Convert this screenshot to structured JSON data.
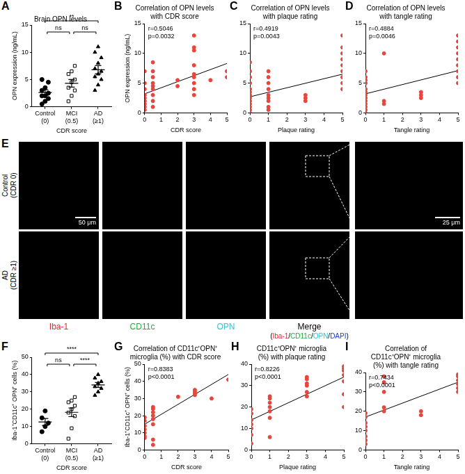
{
  "chart_data": [
    {
      "panel": "A",
      "type": "dot_plot",
      "title": "Brain OPN levels",
      "x_label": "CDR score",
      "y_label": "OPN expression (ng/mL)",
      "categories": [
        [
          "Control",
          "(0)"
        ],
        [
          "MCI",
          "(0.5)"
        ],
        [
          "AD",
          "(≥1)"
        ]
      ],
      "groups": [
        {
          "values": [
            0.5,
            1,
            1.5,
            2,
            2,
            2.5,
            3,
            3.5,
            4.5,
            5
          ],
          "mean": 2.6,
          "sem": 0.5,
          "marker": "circle"
        },
        {
          "values": [
            1,
            2,
            3,
            3.5,
            4.5,
            5,
            6,
            6.5,
            7.5
          ],
          "mean": 4.3,
          "sem": 0.7,
          "marker": "square_open"
        },
        {
          "values": [
            3,
            4,
            5,
            5.5,
            6,
            6.5,
            7,
            8,
            9,
            10,
            11
          ],
          "mean": 6.8,
          "sem": 0.75,
          "marker": "triangle"
        }
      ],
      "comparisons": [
        {
          "from": 0,
          "to": 1,
          "label": "ns"
        },
        {
          "from": 1,
          "to": 2,
          "label": "ns"
        },
        {
          "from": 0,
          "to": 2,
          "label": "**"
        }
      ],
      "color": "#000000",
      "ylim": [
        0,
        15
      ],
      "yticks": [
        0,
        5,
        10,
        15
      ],
      "grid": false
    },
    {
      "panel": "B",
      "type": "scatter",
      "title": [
        "Correlation of OPN levels",
        "with CDR score"
      ],
      "x_label": "CDR score",
      "y_label": "OPN expression (ng/mL)",
      "x": [
        0,
        0,
        0,
        0,
        0,
        0,
        0,
        0,
        0,
        0.5,
        0.5,
        0.5,
        0.5,
        0.5,
        0.5,
        0.5,
        0.5,
        0.5,
        2,
        2,
        3,
        3,
        3,
        3,
        3,
        3,
        3,
        3,
        3,
        4,
        5,
        5
      ],
      "values": [
        0.5,
        1,
        1.5,
        2,
        2.5,
        3,
        4,
        5,
        7,
        1,
        2,
        3,
        4,
        4.5,
        5,
        6,
        7,
        8.5,
        4.5,
        5.5,
        3,
        4,
        5,
        6,
        6.5,
        8,
        10.5,
        11,
        13,
        5.5,
        6,
        7
      ],
      "fit": {
        "x": [
          0,
          5
        ],
        "y": [
          3.2,
          8.3
        ]
      },
      "annotations": [
        "r=0.5046",
        "p=0.0032"
      ],
      "color": "#e8453c",
      "marker": "circle",
      "xlim": [
        0,
        5
      ],
      "xticks": [
        0,
        1,
        2,
        3,
        4,
        5
      ],
      "ylim": [
        0,
        15
      ],
      "yticks": [
        0,
        5,
        10,
        15
      ],
      "grid": false
    },
    {
      "panel": "C",
      "type": "scatter",
      "title": [
        "Correlation of OPN levels",
        "with plaque rating"
      ],
      "x_label": "Plaque rating",
      "x": [
        0,
        0,
        0,
        0,
        0,
        0,
        0,
        0,
        0,
        0,
        0,
        0,
        0,
        1,
        1,
        1,
        1,
        1,
        1,
        1,
        1,
        1,
        3,
        3,
        3,
        5,
        5,
        5,
        5,
        5,
        5,
        5,
        5,
        5
      ],
      "values": [
        0,
        0.5,
        1,
        1.5,
        2,
        2.5,
        3,
        3.5,
        4,
        5,
        6,
        7,
        8.5,
        0.5,
        1,
        2,
        2.5,
        3,
        4,
        5,
        6,
        7,
        2,
        2.5,
        3,
        4,
        5,
        6,
        7,
        8,
        9,
        10,
        11,
        13
      ],
      "fit": {
        "x": [
          0,
          5
        ],
        "y": [
          2.7,
          6.5
        ]
      },
      "annotations": [
        "r=0.4919",
        "p=0.0043"
      ],
      "color": "#e8453c",
      "marker": "circle",
      "xlim": [
        0,
        5
      ],
      "xticks": [
        0,
        1,
        2,
        3,
        4,
        5
      ],
      "ylim": [
        0,
        15
      ],
      "yticks": [
        0,
        5,
        10,
        15
      ],
      "grid": false
    },
    {
      "panel": "D",
      "type": "scatter",
      "title": [
        "Correlation of OPN levels",
        "with tangle rating"
      ],
      "x_label": "Tangle rating",
      "x": [
        0,
        0,
        0,
        0,
        0,
        0,
        0,
        0,
        0,
        0,
        0,
        0,
        0,
        1,
        1,
        1,
        3,
        3,
        3,
        5,
        5,
        5,
        5,
        5,
        5,
        5,
        5,
        5
      ],
      "values": [
        0,
        0.5,
        1,
        1.5,
        2,
        2.5,
        3,
        3.5,
        4,
        5,
        5.5,
        6,
        7,
        1.5,
        2,
        10,
        2.5,
        3,
        3.5,
        5,
        6,
        7,
        8,
        9,
        10,
        11,
        12,
        13
      ],
      "fit": {
        "x": [
          0,
          5
        ],
        "y": [
          3.2,
          7.1
        ]
      },
      "annotations": [
        "r=0.4884",
        "p=0.0046"
      ],
      "color": "#e8453c",
      "marker": "circle",
      "xlim": [
        0,
        5
      ],
      "xticks": [
        0,
        1,
        2,
        3,
        4,
        5
      ],
      "ylim": [
        0,
        15
      ],
      "yticks": [
        0,
        5,
        10,
        15
      ],
      "grid": false
    },
    {
      "panel": "F",
      "type": "dot_plot",
      "x_label": "CDR score",
      "y_label": "Iba-1⁺CD11c⁺ OPN⁺ cells (%)",
      "categories": [
        [
          "Control",
          "(0)"
        ],
        [
          "MCI",
          "(0.5)"
        ],
        [
          "AD",
          "(≥1)"
        ]
      ],
      "groups": [
        {
          "values": [
            7,
            10,
            12,
            15,
            19
          ],
          "mean": 12.6,
          "sem": 2,
          "marker": "circle"
        },
        {
          "values": [
            3,
            9,
            16,
            18,
            20,
            22,
            24,
            25,
            27
          ],
          "mean": 18.2,
          "sem": 2.5,
          "marker": "square_open"
        },
        {
          "values": [
            28,
            30,
            32,
            33,
            35,
            36,
            38,
            40
          ],
          "mean": 34,
          "sem": 1.4,
          "marker": "triangle"
        }
      ],
      "comparisons": [
        {
          "from": 0,
          "to": 1,
          "label": "ns"
        },
        {
          "from": 1,
          "to": 2,
          "label": "****"
        },
        {
          "from": 0,
          "to": 2,
          "label": "****"
        }
      ],
      "color": "#000000",
      "ylim": [
        0,
        50
      ],
      "yticks": [
        0,
        10,
        20,
        30,
        40,
        50
      ],
      "grid": false
    },
    {
      "panel": "G",
      "type": "scatter",
      "title": [
        "Correlation of CD11c⁺OPN⁺",
        "microglia (%) with CDR score"
      ],
      "x_label": "CDR score",
      "y_label": "Iba-1⁺CD11c⁺ OPN⁺ cells (%)",
      "x": [
        0,
        0,
        0,
        0,
        0,
        0,
        0,
        0.5,
        0.5,
        0.5,
        0.5,
        0.5,
        0.5,
        0.5,
        0.5,
        2,
        3,
        3,
        3,
        3,
        4,
        5
      ],
      "values": [
        7,
        8,
        10,
        12,
        14,
        17,
        19,
        3,
        6,
        15,
        18,
        20,
        22,
        24,
        25,
        31,
        32,
        33,
        34,
        35,
        30,
        41
      ],
      "fit": {
        "x": [
          0,
          5
        ],
        "y": [
          15,
          44
        ]
      },
      "annotations": [
        "r=0.8383",
        "p<0.0001"
      ],
      "color": "#e8453c",
      "marker": "circle",
      "xlim": [
        0,
        5
      ],
      "xticks": [
        0,
        1,
        2,
        3,
        4,
        5
      ],
      "ylim": [
        0,
        50
      ],
      "yticks": [
        0,
        10,
        20,
        30,
        40,
        50
      ],
      "grid": false
    },
    {
      "panel": "H",
      "type": "scatter",
      "title": [
        "CD11c⁺OPN⁺ microglia",
        "(%) with plaque rating"
      ],
      "x_label": "Plaque rating",
      "x": [
        0,
        0,
        0,
        0,
        0,
        0,
        0,
        1,
        1,
        1,
        1,
        1,
        1,
        1,
        3,
        3,
        3,
        3,
        3,
        3,
        5,
        5,
        5,
        5,
        5,
        5,
        5
      ],
      "values": [
        3,
        7,
        10,
        12,
        14,
        17,
        19,
        6,
        15,
        18,
        20,
        22,
        24,
        25,
        25,
        27,
        30,
        31,
        33,
        34,
        20,
        26,
        32,
        35,
        37,
        38,
        39
      ],
      "fit": {
        "x": [
          0,
          5
        ],
        "y": [
          14,
          34
        ]
      },
      "annotations": [
        "r=0.8226",
        "p<0.0001"
      ],
      "color": "#e8453c",
      "marker": "circle",
      "xlim": [
        0,
        5
      ],
      "xticks": [
        0,
        1,
        2,
        3,
        4,
        5
      ],
      "ylim": [
        0,
        40
      ],
      "yticks": [
        0,
        10,
        20,
        30,
        40
      ],
      "grid": false
    },
    {
      "panel": "I",
      "type": "scatter",
      "title": [
        "Correlation of",
        "CD11c⁺OPN⁺ microglia",
        "(%) with tangle rating"
      ],
      "x_label": "Tangle rating",
      "x": [
        0,
        0,
        0,
        0,
        0,
        0,
        0,
        0,
        1,
        1,
        1,
        1,
        1,
        3,
        3,
        5,
        5,
        5,
        5,
        5,
        5
      ],
      "values": [
        3,
        5,
        7,
        10,
        12,
        14,
        17,
        19,
        20,
        22,
        30,
        35,
        38,
        18,
        20,
        30,
        32,
        34,
        36,
        38,
        39
      ],
      "fit": {
        "x": [
          0,
          5
        ],
        "y": [
          17,
          35
        ]
      },
      "annotations": [
        "r=0.7434",
        "p<0.0001"
      ],
      "color": "#e8453c",
      "marker": "circle",
      "xlim": [
        0,
        5
      ],
      "xticks": [
        0,
        1,
        2,
        3,
        4,
        5
      ],
      "ylim": [
        0,
        40
      ],
      "yticks": [
        0,
        10,
        20,
        30,
        40
      ],
      "grid": false
    }
  ],
  "image_panel": {
    "panel": "E",
    "rows": [
      [
        "Control",
        "(CDR 0)"
      ],
      [
        "AD",
        "(CDR ≥1)"
      ]
    ],
    "channels": [
      {
        "label": "Iba-1",
        "color": "#e8262b"
      },
      {
        "label": "CD11c",
        "color": "#1fae3c"
      },
      {
        "label": "OPN",
        "color": "#2fc4d6"
      },
      {
        "label": "Merge",
        "color": "#000000"
      }
    ],
    "merge_key": [
      {
        "text": "(",
        "color": "#000000"
      },
      {
        "text": "Iba-1",
        "color": "#e8262b"
      },
      {
        "text": "/",
        "color": "#000000"
      },
      {
        "text": "CD11c",
        "color": "#1fae3c"
      },
      {
        "text": "/",
        "color": "#000000"
      },
      {
        "text": "OPN",
        "color": "#2fc4d6"
      },
      {
        "text": "/",
        "color": "#000000"
      },
      {
        "text": "DAPI",
        "color": "#2040d0"
      },
      {
        "text": ")",
        "color": "#000000"
      }
    ],
    "scale_bars": [
      "50 μm",
      "25 μm"
    ]
  }
}
